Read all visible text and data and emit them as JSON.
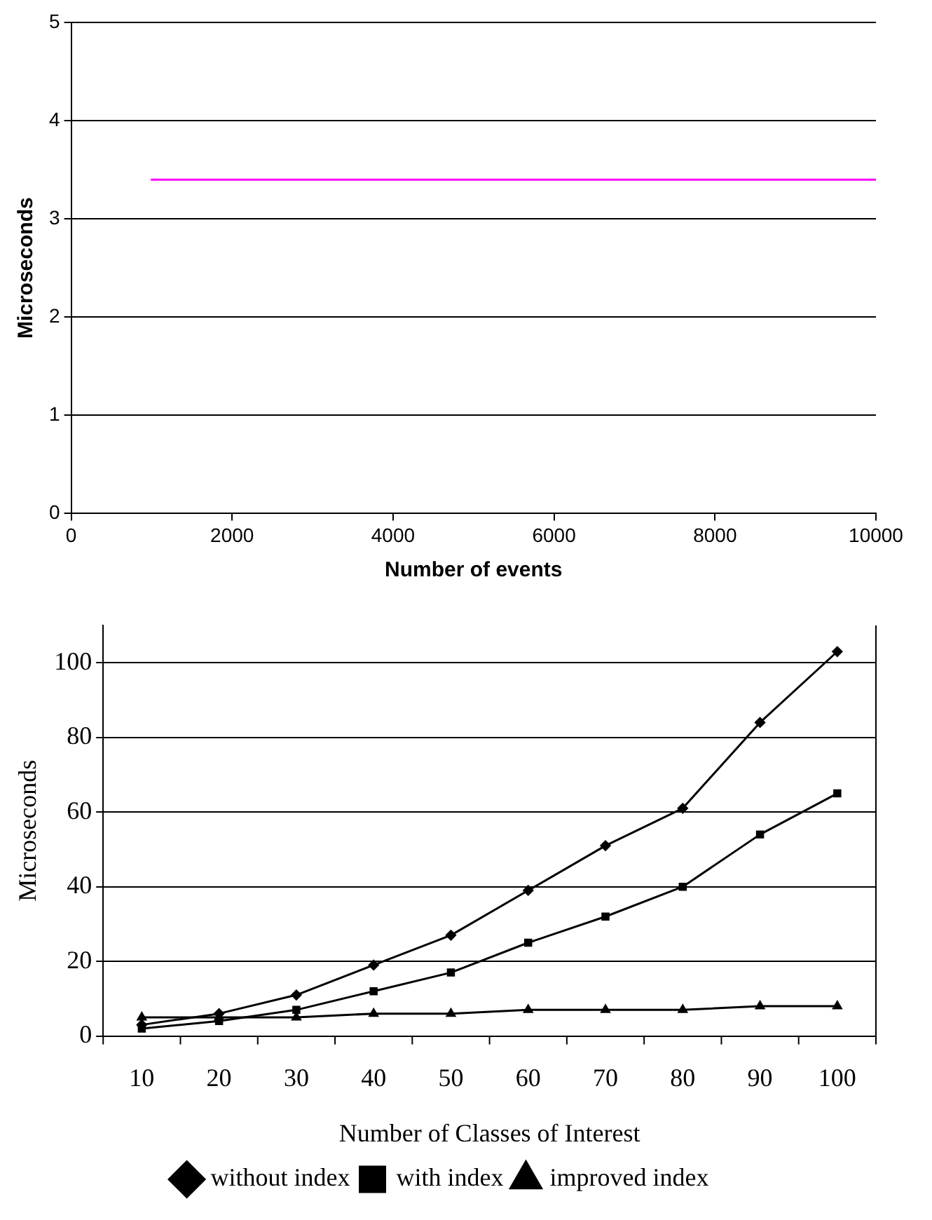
{
  "chart_data": [
    {
      "type": "line",
      "xlabel": "Number of events",
      "ylabel": "Microseconds",
      "x": [
        1000,
        10000
      ],
      "xlim": [
        0,
        10000
      ],
      "xticks": [
        0,
        2000,
        4000,
        6000,
        8000,
        10000
      ],
      "ylim": [
        0,
        5
      ],
      "yticks": [
        0,
        1,
        2,
        3,
        4,
        5
      ],
      "grid": "y",
      "legend": false,
      "marker": "none",
      "series": [
        {
          "color": "#ff00ff",
          "values": [
            3.4,
            3.4
          ]
        }
      ]
    },
    {
      "type": "line",
      "xlabel": "Number of Classes of Interest",
      "ylabel": "Microseconds",
      "categories": [
        "10",
        "20",
        "30",
        "40",
        "50",
        "60",
        "70",
        "80",
        "90",
        "100"
      ],
      "ylim": [
        0,
        110
      ],
      "yticks": [
        0,
        20,
        40,
        60,
        80,
        100
      ],
      "grid": "y",
      "legend": "bottom",
      "series": [
        {
          "name": "without index",
          "color": "#000000",
          "marker": "diamond",
          "values": [
            3,
            6,
            11,
            19,
            27,
            39,
            51,
            61,
            84,
            103
          ]
        },
        {
          "name": "with index",
          "color": "#000000",
          "marker": "square",
          "values": [
            2,
            4,
            7,
            12,
            17,
            25,
            32,
            40,
            54,
            65
          ]
        },
        {
          "name": "improved index",
          "color": "#000000",
          "marker": "triangle",
          "values": [
            5,
            5,
            5,
            6,
            6,
            7,
            7,
            7,
            8,
            8
          ]
        }
      ]
    }
  ]
}
